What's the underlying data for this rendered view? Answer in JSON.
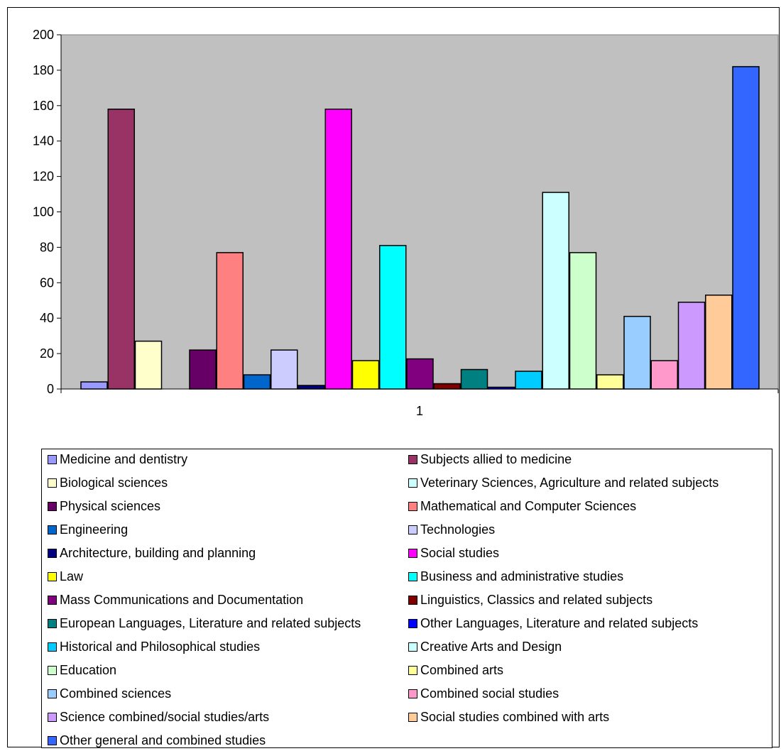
{
  "chart_data": {
    "type": "bar",
    "categories": [
      "1"
    ],
    "ylim": [
      0,
      200
    ],
    "yticks": [
      0,
      20,
      40,
      60,
      80,
      100,
      120,
      140,
      160,
      180,
      200
    ],
    "grid": false,
    "plot_background": "#C0C0C0",
    "legend_position": "bottom",
    "series": [
      {
        "name": "Medicine and dentistry",
        "values": [
          4
        ],
        "color": "#9999FF"
      },
      {
        "name": "Subjects allied to medicine",
        "values": [
          158
        ],
        "color": "#993366"
      },
      {
        "name": "Biological sciences",
        "values": [
          27
        ],
        "color": "#FFFFCC"
      },
      {
        "name": "Veterinary Sciences, Agriculture and related subjects",
        "values": [
          0
        ],
        "color": "#CCFFFF"
      },
      {
        "name": "Physical sciences",
        "values": [
          22
        ],
        "color": "#660066"
      },
      {
        "name": "Mathematical and Computer Sciences",
        "values": [
          77
        ],
        "color": "#FF8080"
      },
      {
        "name": "Engineering",
        "values": [
          8
        ],
        "color": "#0066CC"
      },
      {
        "name": "Technologies",
        "values": [
          22
        ],
        "color": "#CCCCFF"
      },
      {
        "name": "Architecture, building and planning",
        "values": [
          2
        ],
        "color": "#000080"
      },
      {
        "name": "Social studies",
        "values": [
          158
        ],
        "color": "#FF00FF"
      },
      {
        "name": "Law",
        "values": [
          16
        ],
        "color": "#FFFF00"
      },
      {
        "name": "Business and administrative studies",
        "values": [
          81
        ],
        "color": "#00FFFF"
      },
      {
        "name": "Mass Communications and Documentation",
        "values": [
          17
        ],
        "color": "#800080"
      },
      {
        "name": "Linguistics, Classics and related subjects",
        "values": [
          3
        ],
        "color": "#800000"
      },
      {
        "name": "European Languages, Literature and related subjects",
        "values": [
          11
        ],
        "color": "#008080"
      },
      {
        "name": "Other Languages, Literature and related subjects",
        "values": [
          1
        ],
        "color": "#0000FF"
      },
      {
        "name": "Historical and Philosophical studies",
        "values": [
          10
        ],
        "color": "#00CCFF"
      },
      {
        "name": "Creative Arts and Design",
        "values": [
          111
        ],
        "color": "#CCFFFF"
      },
      {
        "name": "Education",
        "values": [
          77
        ],
        "color": "#CCFFCC"
      },
      {
        "name": "Combined arts",
        "values": [
          8
        ],
        "color": "#FFFF99"
      },
      {
        "name": "Combined sciences",
        "values": [
          41
        ],
        "color": "#99CCFF"
      },
      {
        "name": "Combined social studies",
        "values": [
          16
        ],
        "color": "#FF99CC"
      },
      {
        "name": "Science combined/social studies/arts",
        "values": [
          49
        ],
        "color": "#CC99FF"
      },
      {
        "name": "Social studies combined with arts",
        "values": [
          53
        ],
        "color": "#FFCC99"
      },
      {
        "name": "Other general and combined studies",
        "values": [
          182
        ],
        "color": "#3366FF"
      }
    ]
  }
}
